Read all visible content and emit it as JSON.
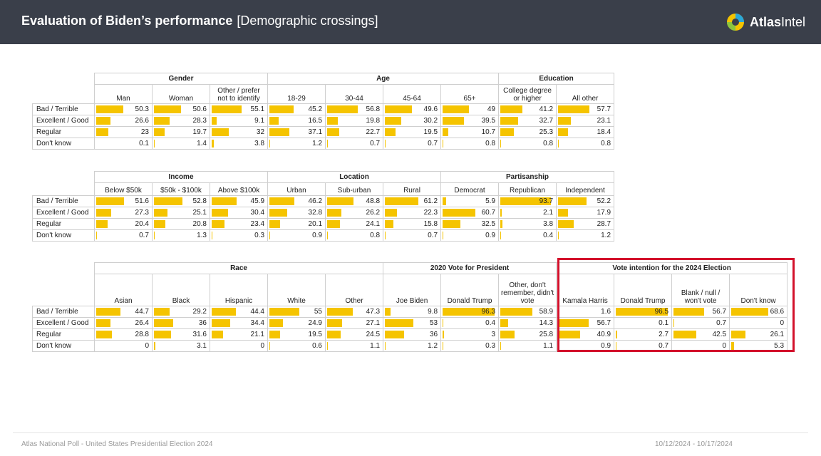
{
  "header": {
    "title": "Evaluation of Biden’s performance",
    "subtitle": "[Demographic crossings]",
    "brand_a": "Atlas",
    "brand_b": "Intel"
  },
  "footer": {
    "left": "Atlas National Poll - United States Presidential Election 2024",
    "right": "10/12/2024 - 10/17/2024"
  },
  "colors": {
    "bar": "#f5c400",
    "header_bg": "#3a3f4a",
    "highlight": "#d3112b"
  },
  "chart_data": [
    {
      "type": "table",
      "rows": [
        "Bad / Terrible",
        "Excellent / Good",
        "Regular",
        "Don't know"
      ],
      "groups": [
        {
          "name": "Gender",
          "columns": [
            {
              "label": "Man",
              "values": [
                50.3,
                26.6,
                23,
                0.1
              ]
            },
            {
              "label": "Woman",
              "values": [
                50.6,
                28.3,
                19.7,
                1.4
              ]
            },
            {
              "label": "Other / prefer not to identify",
              "values": [
                55.1,
                9.1,
                32,
                3.8
              ]
            }
          ]
        },
        {
          "name": "Age",
          "columns": [
            {
              "label": "18-29",
              "values": [
                45.2,
                16.5,
                37.1,
                1.2
              ]
            },
            {
              "label": "30-44",
              "values": [
                56.8,
                19.8,
                22.7,
                0.7
              ]
            },
            {
              "label": "45-64",
              "values": [
                49.6,
                30.2,
                19.5,
                0.7
              ]
            },
            {
              "label": "65+",
              "values": [
                49,
                39.5,
                10.7,
                0.8
              ]
            }
          ]
        },
        {
          "name": "Education",
          "columns": [
            {
              "label": "College degree or higher",
              "values": [
                41.2,
                32.7,
                25.3,
                0.8
              ]
            },
            {
              "label": "All other",
              "values": [
                57.7,
                23.1,
                18.4,
                0.8
              ]
            }
          ]
        }
      ]
    },
    {
      "type": "table",
      "rows": [
        "Bad / Terrible",
        "Excellent / Good",
        "Regular",
        "Don't know"
      ],
      "groups": [
        {
          "name": "Income",
          "columns": [
            {
              "label": "Below $50k",
              "values": [
                51.6,
                27.3,
                20.4,
                0.7
              ]
            },
            {
              "label": "$50k - $100k",
              "values": [
                52.8,
                25.1,
                20.8,
                1.3
              ]
            },
            {
              "label": "Above $100k",
              "values": [
                45.9,
                30.4,
                23.4,
                0.3
              ]
            }
          ]
        },
        {
          "name": "Location",
          "columns": [
            {
              "label": "Urban",
              "values": [
                46.2,
                32.8,
                20.1,
                0.9
              ]
            },
            {
              "label": "Sub-urban",
              "values": [
                48.8,
                26.2,
                24.1,
                0.8
              ]
            },
            {
              "label": "Rural",
              "values": [
                61.2,
                22.3,
                15.8,
                0.7
              ]
            }
          ]
        },
        {
          "name": "Partisanship",
          "columns": [
            {
              "label": "Democrat",
              "values": [
                5.9,
                60.7,
                32.5,
                0.9
              ]
            },
            {
              "label": "Republican",
              "values": [
                93.7,
                2.1,
                3.8,
                0.4
              ]
            },
            {
              "label": "Independent",
              "values": [
                52.2,
                17.9,
                28.7,
                1.2
              ]
            }
          ]
        }
      ]
    },
    {
      "type": "table",
      "rows": [
        "Bad / Terrible",
        "Excellent / Good",
        "Regular",
        "Don't know"
      ],
      "groups": [
        {
          "name": "Race",
          "columns": [
            {
              "label": "Asian",
              "values": [
                44.7,
                26.4,
                28.8,
                0
              ]
            },
            {
              "label": "Black",
              "values": [
                29.2,
                36,
                31.6,
                3.1
              ]
            },
            {
              "label": "Hispanic",
              "values": [
                44.4,
                34.4,
                21.1,
                0
              ]
            },
            {
              "label": "White",
              "values": [
                55,
                24.9,
                19.5,
                0.6
              ]
            },
            {
              "label": "Other",
              "values": [
                47.3,
                27.1,
                24.5,
                1.1
              ]
            }
          ]
        },
        {
          "name": "2020 Vote for President",
          "columns": [
            {
              "label": "Joe Biden",
              "values": [
                9.8,
                53,
                36,
                1.2
              ]
            },
            {
              "label": "Donald Trump",
              "values": [
                96.3,
                0.4,
                3,
                0.3
              ]
            },
            {
              "label": "Other, don't remember, didn't vote",
              "values": [
                58.9,
                14.3,
                25.8,
                1.1
              ]
            }
          ]
        },
        {
          "name": "Vote intention for the 2024 Election",
          "columns": [
            {
              "label": "Kamala Harris",
              "values": [
                1.6,
                56.7,
                40.9,
                0.9
              ]
            },
            {
              "label": "Donald Trump",
              "values": [
                96.5,
                0.1,
                2.7,
                0.7
              ]
            },
            {
              "label": "Blank / null / won't vote",
              "values": [
                56.7,
                0.7,
                42.5,
                0
              ]
            },
            {
              "label": "Don't know",
              "values": [
                68.6,
                0,
                26.1,
                5.3
              ]
            }
          ]
        }
      ]
    }
  ]
}
